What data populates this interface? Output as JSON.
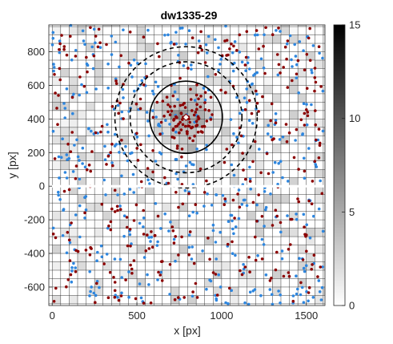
{
  "chart_data": {
    "type": "scatter",
    "title": "dw1335-29",
    "xlabel": "x [px]",
    "ylabel": "y [px]",
    "xlim": [
      -20,
      1610
    ],
    "ylim": [
      -710,
      960
    ],
    "x_ticks": [
      0,
      500,
      1000,
      1500
    ],
    "y_ticks": [
      -600,
      -400,
      -200,
      0,
      200,
      400,
      600,
      800
    ],
    "grid": true,
    "colorbar": {
      "min": 0,
      "max": 15,
      "ticks": [
        0,
        5,
        10,
        15
      ],
      "colormap": "white-to-black"
    },
    "center": {
      "x": 790,
      "y": 410
    },
    "circles": [
      {
        "style": "solid",
        "radius": 215
      },
      {
        "style": "dashed",
        "radius": 330
      },
      {
        "style": "dashed",
        "radius": 420
      }
    ],
    "series": [
      {
        "color": "#8b0000",
        "count": 430,
        "concentrated_near_center": true
      },
      {
        "color": "#2e86de",
        "count": 480,
        "concentrated_near_center": false
      }
    ]
  }
}
